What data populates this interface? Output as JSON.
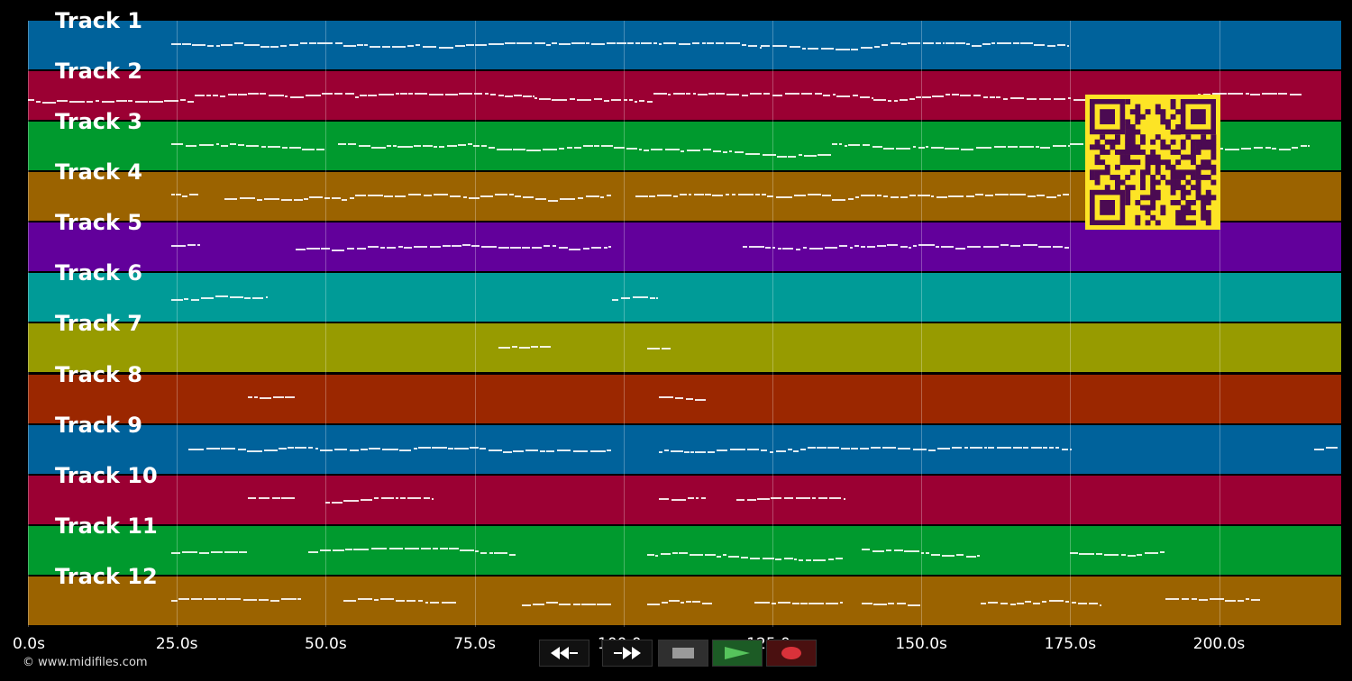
{
  "tracks": [
    {
      "label": "Track 1",
      "color": "#00629b"
    },
    {
      "label": "Track 2",
      "color": "#9b0033"
    },
    {
      "label": "Track 3",
      "color": "#009a2e"
    },
    {
      "label": "Track 4",
      "color": "#9b6300"
    },
    {
      "label": "Track 5",
      "color": "#62009b"
    },
    {
      "label": "Track 6",
      "color": "#009b97"
    },
    {
      "label": "Track 7",
      "color": "#979b00"
    },
    {
      "label": "Track 8",
      "color": "#9b2700"
    },
    {
      "label": "Track 9",
      "color": "#00629b"
    },
    {
      "label": "Track 10",
      "color": "#9b0033"
    },
    {
      "label": "Track 11",
      "color": "#009a2e"
    },
    {
      "label": "Track 12",
      "color": "#9b6300"
    }
  ],
  "timeline": {
    "ticks": [
      {
        "label": "0.0s",
        "t": 0
      },
      {
        "label": "25.0s",
        "t": 25
      },
      {
        "label": "50.0s",
        "t": 50
      },
      {
        "label": "75.0s",
        "t": 75
      },
      {
        "label": "100.0s",
        "t": 100
      },
      {
        "label": "125.0s",
        "t": 125
      },
      {
        "label": "150.0s",
        "t": 150
      },
      {
        "label": "175.0s",
        "t": 175
      },
      {
        "label": "200.0s",
        "t": 200
      }
    ],
    "max_seconds": 220.5
  },
  "notes": [
    [
      [
        24,
        53
      ],
      [
        53,
        88
      ],
      [
        88,
        123
      ],
      [
        123,
        154
      ],
      [
        154,
        175
      ]
    ],
    [
      [
        0,
        28
      ],
      [
        28,
        55
      ],
      [
        55,
        85
      ],
      [
        85,
        105
      ],
      [
        105,
        142
      ],
      [
        142,
        185
      ],
      [
        185,
        214
      ]
    ],
    [
      [
        24,
        50
      ],
      [
        52,
        95
      ],
      [
        95,
        135
      ],
      [
        135,
        175
      ],
      [
        175,
        215
      ]
    ],
    [
      [
        24,
        29
      ],
      [
        33,
        55
      ],
      [
        55,
        98
      ],
      [
        102,
        135
      ],
      [
        135,
        175
      ]
    ],
    [
      [
        24,
        29
      ],
      [
        45,
        98
      ],
      [
        120,
        175
      ]
    ],
    [
      [
        24,
        40
      ],
      [
        98,
        106
      ]
    ],
    [
      [
        79,
        88
      ],
      [
        104,
        108
      ]
    ],
    [
      [
        37,
        45
      ],
      [
        106,
        114
      ]
    ],
    [
      [
        27,
        98
      ],
      [
        106,
        175
      ],
      [
        216,
        220
      ]
    ],
    [
      [
        37,
        45
      ],
      [
        50,
        68
      ],
      [
        106,
        114
      ],
      [
        119,
        137
      ]
    ],
    [
      [
        24,
        37
      ],
      [
        47,
        82
      ],
      [
        104,
        137
      ],
      [
        140,
        160
      ],
      [
        175,
        191
      ]
    ],
    [
      [
        24,
        46
      ],
      [
        53,
        72
      ],
      [
        83,
        98
      ],
      [
        104,
        115
      ],
      [
        122,
        137
      ],
      [
        140,
        150
      ],
      [
        160,
        180
      ],
      [
        191,
        207
      ]
    ]
  ],
  "copyright": "© www.midifiles.com",
  "controls": [
    {
      "name": "rewind-button",
      "icon": "rewind-icon",
      "bg": "#111111"
    },
    {
      "name": "fast-forward-button",
      "icon": "fast-forward-icon",
      "bg": "#111111"
    },
    {
      "name": "stop-button",
      "icon": "stop-icon",
      "bg": "#2f2f2f"
    },
    {
      "name": "play-button",
      "icon": "play-icon",
      "bg": "#1c5b25"
    },
    {
      "name": "record-button",
      "icon": "record-icon",
      "bg": "#4a1010"
    }
  ],
  "qr": {
    "fg": "#4b0a52",
    "bg": "#fde425"
  }
}
